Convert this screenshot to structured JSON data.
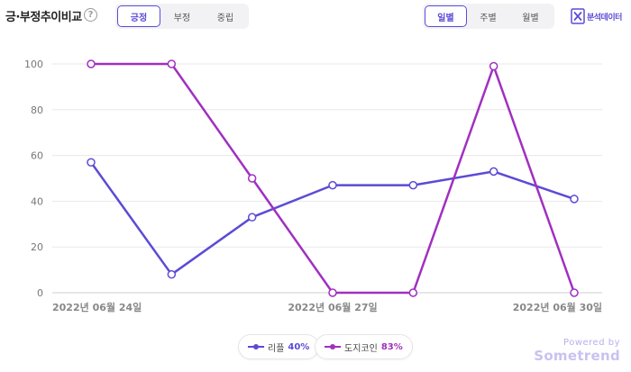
{
  "header": {
    "title": "긍·부정추이비교",
    "help_label": "?",
    "sentiment_tabs": [
      {
        "label": "긍정",
        "active": true
      },
      {
        "label": "부정",
        "active": false
      },
      {
        "label": "중립",
        "active": false
      }
    ],
    "period_tabs": [
      {
        "label": "일별",
        "active": true
      },
      {
        "label": "주별",
        "active": false
      },
      {
        "label": "월별",
        "active": false
      }
    ],
    "export_label": "분석데이터"
  },
  "legend": {
    "items": [
      {
        "name": "리플",
        "pct": "40%"
      },
      {
        "name": "도지코인",
        "pct": "83%"
      }
    ]
  },
  "branding": {
    "powered_by": "Powered by",
    "brand": "Sometrend"
  },
  "chart_data": {
    "type": "line",
    "x": [
      "2022-06-24",
      "2022-06-25",
      "2022-06-26",
      "2022-06-27",
      "2022-06-28",
      "2022-06-29",
      "2022-06-30"
    ],
    "x_tick_labels": [
      "2022년 06월 24일",
      "2022년 06월 27일",
      "2022년 06월 30일"
    ],
    "x_tick_indices": [
      0,
      3,
      6
    ],
    "y_ticks": [
      0,
      20,
      40,
      60,
      80,
      100
    ],
    "ylim": [
      0,
      100
    ],
    "grid": true,
    "legend_position": "bottom-center",
    "series": [
      {
        "name": "리플",
        "color": "#5b4bd6",
        "values": [
          57,
          8,
          33,
          47,
          47,
          53,
          41
        ]
      },
      {
        "name": "도지코인",
        "color": "#a030c0",
        "values": [
          100,
          100,
          50,
          0,
          0,
          99,
          0
        ]
      }
    ]
  }
}
